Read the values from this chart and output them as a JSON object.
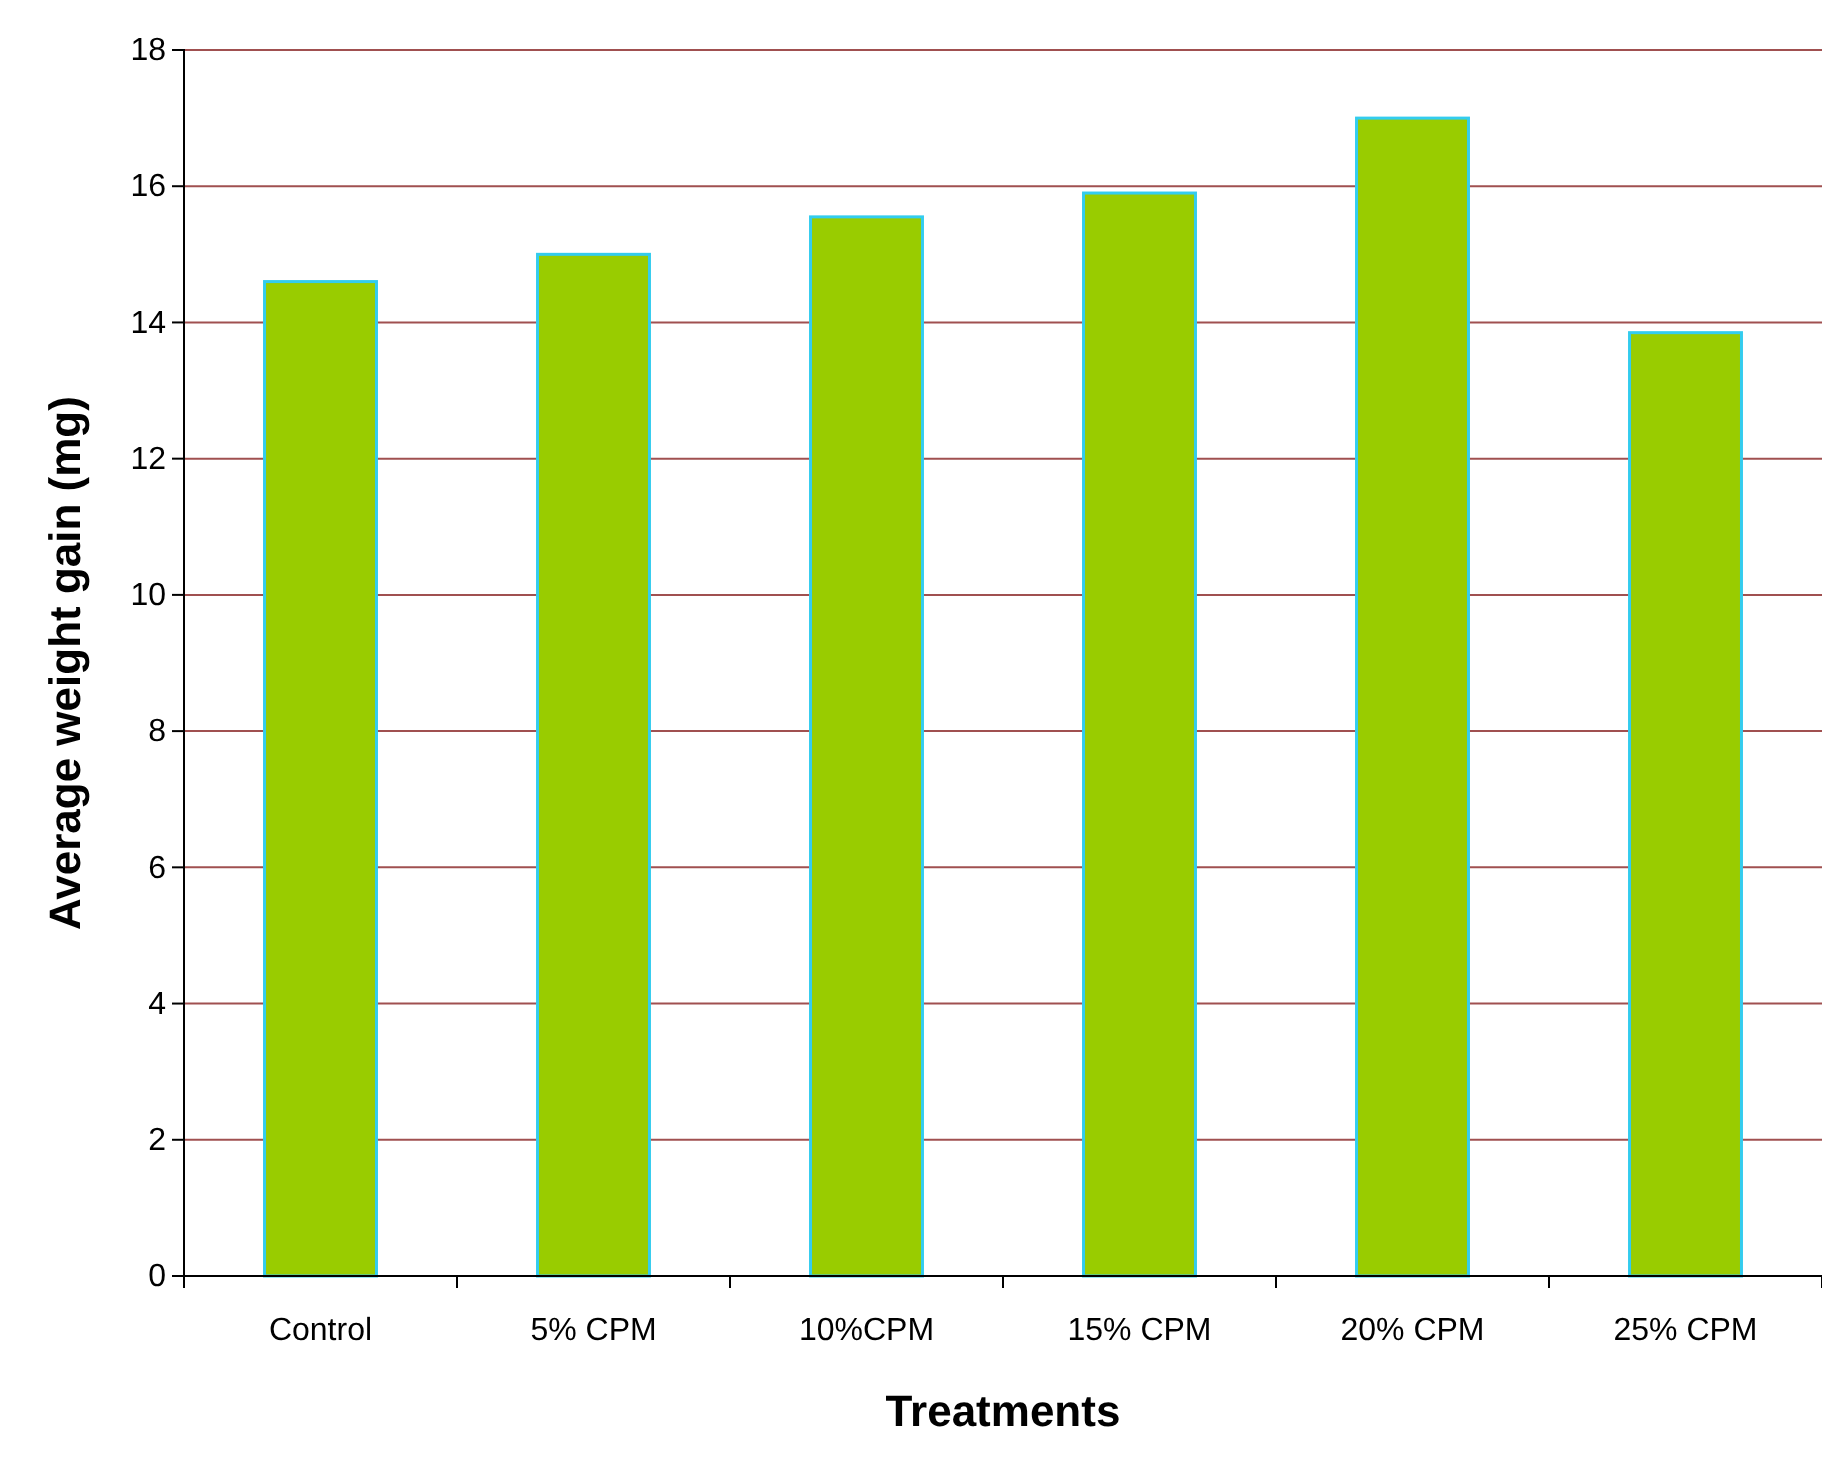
{
  "chart_data": {
    "type": "bar",
    "xlabel": "Treatments",
    "ylabel": "Average weight gain (mg)",
    "categories": [
      "Control",
      "5% CPM",
      "10%CPM",
      "15% CPM",
      "20% CPM",
      "25% CPM"
    ],
    "values": [
      14.6,
      15.0,
      15.55,
      15.9,
      17.0,
      13.85
    ],
    "color": "#99cc00",
    "ylim": [
      0,
      18
    ],
    "yticks": [
      0,
      2,
      4,
      6,
      8,
      10,
      12,
      14,
      16,
      18
    ],
    "grid": "y"
  }
}
